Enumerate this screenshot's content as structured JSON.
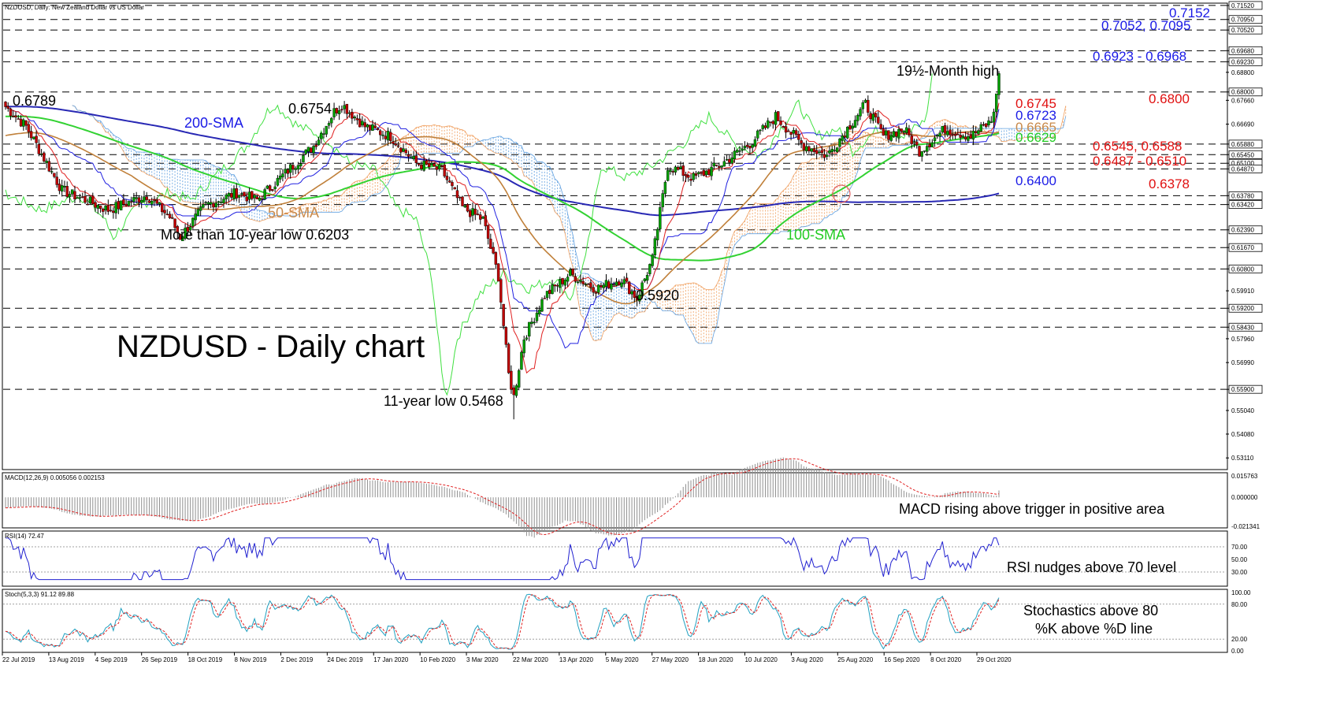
{
  "chart_data": {
    "type": "candlestick",
    "header": "NZDUSD, Daily:  New Zealand Dollar vs US Dollar",
    "title": "NZDUSD - Daily chart",
    "price_axis": {
      "ylim": [
        0.527,
        0.7155
      ],
      "ticks": [
        "0.71520",
        "0.70950",
        "0.70520",
        "0.69680",
        "0.69230",
        "0.68800",
        "0.68000",
        "0.67660",
        "0.66690",
        "0.65880",
        "0.65450",
        "0.65100",
        "0.64870",
        "0.63780",
        "0.63420",
        "0.62390",
        "0.61670",
        "0.60800",
        "0.59910",
        "0.59200",
        "0.58430",
        "0.57960",
        "0.56990",
        "0.55900",
        "0.55040",
        "0.54080",
        "0.53110"
      ]
    },
    "dashed_levels": [
      0.7152,
      0.7095,
      0.7052,
      0.6968,
      0.6923,
      0.68,
      0.6588,
      0.6545,
      0.651,
      0.6487,
      0.6378,
      0.6342,
      0.6239,
      0.6167,
      0.608,
      0.592,
      0.5843,
      0.559
    ],
    "x_axis": {
      "date_labels": [
        "22 Jul 2019",
        "13 Aug 2019",
        "4 Sep 2019",
        "26 Sep 2019",
        "18 Oct 2019",
        "8 Nov 2019",
        "2 Dec 2019",
        "24 Dec 2019",
        "17 Jan 2020",
        "10 Feb 2020",
        "3 Mar 2020",
        "22 Mar 2020",
        "13 Apr 2020",
        "5 May 2020",
        "27 May 2020",
        "18 Jun 2020",
        "10 Jul 2020",
        "3 Aug 2020",
        "25 Aug 2020",
        "16 Sep 2020",
        "8 Oct 2020",
        "29 Oct 2020"
      ]
    },
    "price_anchors": [
      {
        "x": 0,
        "y": 0.674
      },
      {
        "x": 8,
        "y": 0.666
      },
      {
        "x": 22,
        "y": 0.64
      },
      {
        "x": 40,
        "y": 0.632
      },
      {
        "x": 55,
        "y": 0.638
      },
      {
        "x": 64,
        "y": 0.629
      },
      {
        "x": 68,
        "y": 0.621
      },
      {
        "x": 78,
        "y": 0.634
      },
      {
        "x": 90,
        "y": 0.639
      },
      {
        "x": 98,
        "y": 0.636
      },
      {
        "x": 108,
        "y": 0.646
      },
      {
        "x": 120,
        "y": 0.658
      },
      {
        "x": 128,
        "y": 0.672
      },
      {
        "x": 131,
        "y": 0.675
      },
      {
        "x": 140,
        "y": 0.666
      },
      {
        "x": 150,
        "y": 0.662
      },
      {
        "x": 160,
        "y": 0.651
      },
      {
        "x": 170,
        "y": 0.648
      },
      {
        "x": 178,
        "y": 0.633
      },
      {
        "x": 186,
        "y": 0.628
      },
      {
        "x": 192,
        "y": 0.605
      },
      {
        "x": 196,
        "y": 0.565
      },
      {
        "x": 198,
        "y": 0.556
      },
      {
        "x": 202,
        "y": 0.58
      },
      {
        "x": 210,
        "y": 0.597
      },
      {
        "x": 220,
        "y": 0.606
      },
      {
        "x": 230,
        "y": 0.6
      },
      {
        "x": 240,
        "y": 0.604
      },
      {
        "x": 246,
        "y": 0.596
      },
      {
        "x": 252,
        "y": 0.612
      },
      {
        "x": 258,
        "y": 0.65
      },
      {
        "x": 268,
        "y": 0.645
      },
      {
        "x": 278,
        "y": 0.65
      },
      {
        "x": 290,
        "y": 0.659
      },
      {
        "x": 300,
        "y": 0.67
      },
      {
        "x": 310,
        "y": 0.659
      },
      {
        "x": 320,
        "y": 0.654
      },
      {
        "x": 330,
        "y": 0.668
      },
      {
        "x": 335,
        "y": 0.675
      },
      {
        "x": 342,
        "y": 0.662
      },
      {
        "x": 350,
        "y": 0.665
      },
      {
        "x": 356,
        "y": 0.656
      },
      {
        "x": 366,
        "y": 0.665
      },
      {
        "x": 376,
        "y": 0.662
      },
      {
        "x": 384,
        "y": 0.668
      },
      {
        "x": 387,
        "y": 0.683
      }
    ],
    "last_index": 387,
    "series_colors": {
      "candle_up": "#00a000",
      "candle_down": "#c00000",
      "sma200": "#2828b4",
      "sma100": "#32d232",
      "sma50": "#c0803a",
      "tenkan": "#e02020",
      "kijun": "#2020e0",
      "chikou": "#40e040",
      "cloud_bull": "#f0a060",
      "cloud_bear": "#60a0e0",
      "rsi": "#2020d0",
      "stoch_k": "#20a0c0",
      "stoch_d": "#e02020"
    },
    "annotations": {
      "high_19_5m": "19½-Month high",
      "sma200": "200-SMA",
      "sma50": "50-SMA",
      "sma100": "100-SMA",
      "low_10y": "More than 10-year low 0.6203",
      "low_11y": "11-year low 0.5468",
      "price_0789": "0.6789",
      "price_6754": "0.6754",
      "price_5920": "0.5920"
    },
    "level_labels": [
      {
        "text": "0.7152",
        "color": "#1a1ae6"
      },
      {
        "text": "0.7052, 0.7095",
        "color": "#1a1ae6"
      },
      {
        "text": "0.6923 - 0.6968",
        "color": "#1a1ae6"
      },
      {
        "text": "0.6800",
        "color": "#e01010"
      },
      {
        "text": "0.6745",
        "color": "#e01010"
      },
      {
        "text": "0.6723",
        "color": "#1a1ae6"
      },
      {
        "text": "0.6665",
        "color": "#c8894a"
      },
      {
        "text": "0.6629",
        "color": "#22cc22"
      },
      {
        "text": "0.6545, 0.6588",
        "color": "#e01010"
      },
      {
        "text": "0.6487 - 0.6510",
        "color": "#e01010"
      },
      {
        "text": "0.6400",
        "color": "#1a1ae6"
      },
      {
        "text": "0.6378",
        "color": "#e01010"
      }
    ],
    "macd": {
      "header": "MACD(12,26,9) 0.005056 0.002153",
      "ylim": [
        -0.021341,
        0.015763
      ],
      "ticks": [
        "0.015763",
        "0.000000",
        "-0.021341"
      ],
      "comment": "MACD rising above trigger in positive area"
    },
    "rsi": {
      "header": "RSI(14) 72.47",
      "ylim": [
        10,
        90
      ],
      "ticks": [
        "70.00",
        "50.00",
        "30.00"
      ],
      "comment": "RSI nudges above 70 level"
    },
    "stoch": {
      "header": "Stoch(5,3,3) 91.12 89.88",
      "ylim": [
        0,
        100
      ],
      "ticks": [
        "100.00",
        "80.00",
        "20.00",
        "0.00"
      ],
      "comment_line1": "Stochastics above 80",
      "comment_line2": "%K above %D line"
    }
  }
}
